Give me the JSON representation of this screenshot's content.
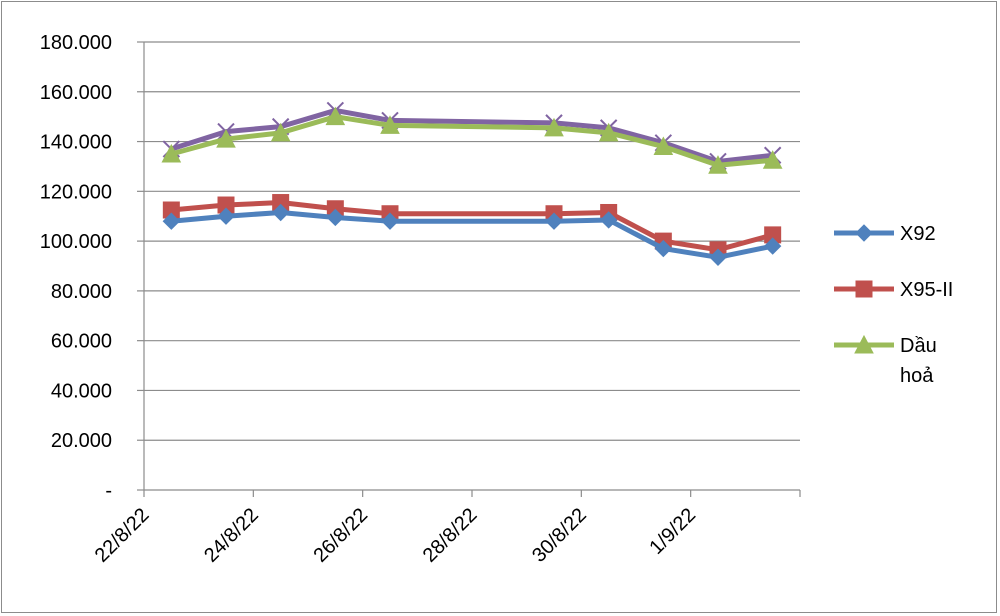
{
  "chart_data": {
    "type": "line",
    "title": "",
    "xlabel": "",
    "ylabel": "",
    "ylim": [
      0,
      180000
    ],
    "y_ticks": [
      {
        "value": 0,
        "label": "-"
      },
      {
        "value": 20000,
        "label": "20.000"
      },
      {
        "value": 40000,
        "label": "40.000"
      },
      {
        "value": 60000,
        "label": "60.000"
      },
      {
        "value": 80000,
        "label": "80.000"
      },
      {
        "value": 100000,
        "label": "100.000"
      },
      {
        "value": 120000,
        "label": "120.000"
      },
      {
        "value": 140000,
        "label": "140.000"
      },
      {
        "value": 160000,
        "label": "160.000"
      },
      {
        "value": 180000,
        "label": "180.000"
      }
    ],
    "x_range": [
      "2022-08-22",
      "2022-09-02"
    ],
    "x_ticks": [
      {
        "date": "2022-08-22",
        "label": "22/8/22"
      },
      {
        "date": "2022-08-24",
        "label": "24/8/22"
      },
      {
        "date": "2022-08-26",
        "label": "26/8/22"
      },
      {
        "date": "2022-08-28",
        "label": "28/8/22"
      },
      {
        "date": "2022-08-30",
        "label": "30/8/22"
      },
      {
        "date": "2022-09-01",
        "label": "1/9/22"
      }
    ],
    "x": [
      "2022-08-22",
      "2022-08-23",
      "2022-08-24",
      "2022-08-25",
      "2022-08-26",
      "2022-08-29",
      "2022-08-30",
      "2022-08-31",
      "2022-09-01",
      "2022-09-02"
    ],
    "grid": true,
    "legend_position": "right",
    "series": [
      {
        "name": "X92",
        "color": "#4f81bd",
        "marker": "diamond",
        "values": [
          108000,
          110000,
          111500,
          109500,
          108000,
          108000,
          108500,
          97000,
          93500,
          98000
        ]
      },
      {
        "name": "X95-II",
        "color": "#c0504d",
        "marker": "square",
        "values": [
          112500,
          114500,
          115500,
          113000,
          111000,
          111000,
          111500,
          100000,
          96500,
          102500
        ]
      },
      {
        "name": "Dầu hoả",
        "color": "#9bbb59",
        "marker": "triangle",
        "values": [
          135000,
          141000,
          143500,
          150000,
          146500,
          145500,
          143500,
          138000,
          130500,
          132500
        ]
      },
      {
        "name": "",
        "color": "#8064a2",
        "marker": "x",
        "values": [
          137000,
          144000,
          146000,
          152500,
          148500,
          147500,
          145500,
          139500,
          132000,
          134500
        ]
      }
    ],
    "legend": [
      {
        "series": 0,
        "lines": [
          "X92"
        ]
      },
      {
        "series": 1,
        "lines": [
          "X95-II"
        ]
      },
      {
        "series": 2,
        "lines": [
          "Dầu",
          "hoả"
        ]
      }
    ]
  }
}
